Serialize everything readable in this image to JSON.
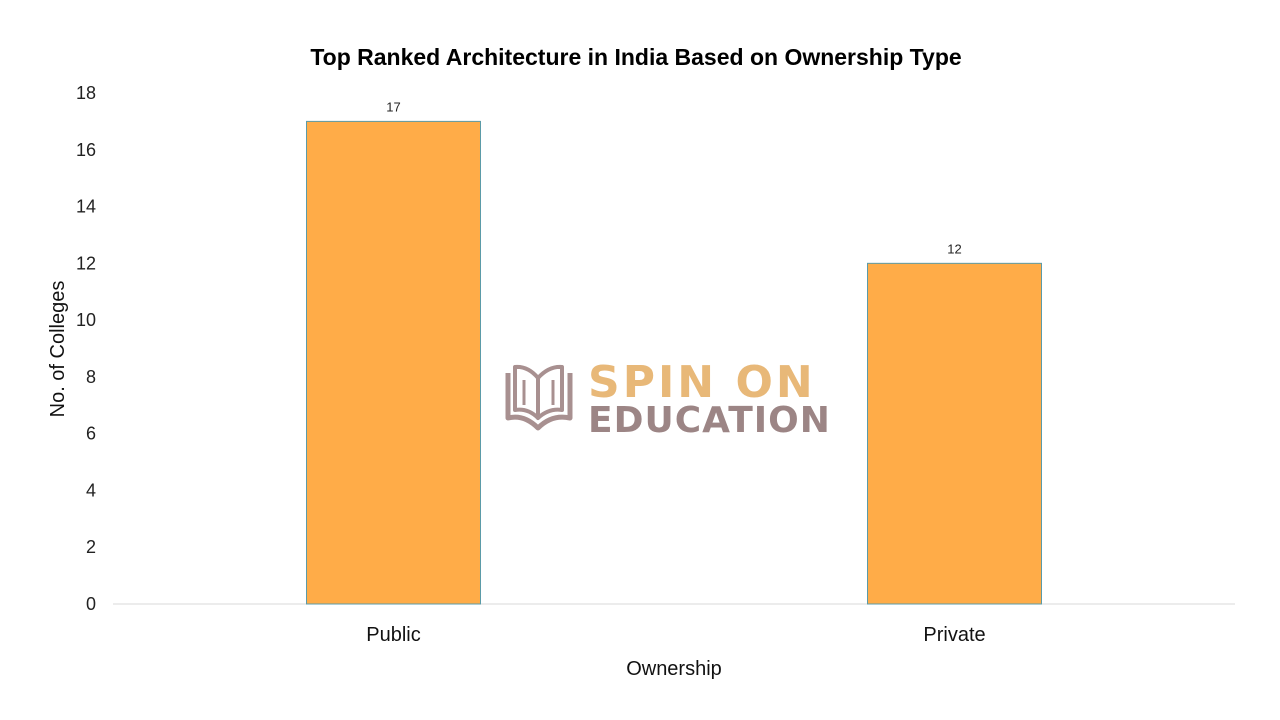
{
  "chart_data": {
    "type": "bar",
    "title": "Top Ranked Architecture in India Based on Ownership Type",
    "xlabel": "Ownership",
    "ylabel": "No. of Colleges",
    "categories": [
      "Public",
      "Private"
    ],
    "values": [
      17,
      12
    ],
    "data_labels": [
      "17",
      "12"
    ],
    "ylim": [
      0,
      18
    ],
    "yticks": [
      0,
      2,
      4,
      6,
      8,
      10,
      12,
      14,
      16,
      18
    ],
    "grid": false,
    "legend": "none",
    "bar_color": "#FFAC48",
    "bar_edge_color": "#5B9BA8"
  },
  "watermark": {
    "line1": "SPIN ON",
    "line2": "EDUCATION",
    "icon": "open-book-icon",
    "color_line1": "#E8B878",
    "color_line2": "#9C8585"
  }
}
